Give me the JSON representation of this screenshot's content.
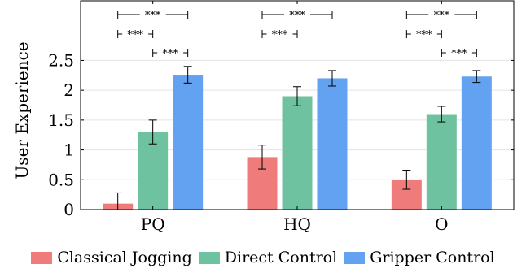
{
  "chart_data": {
    "type": "bar",
    "ylabel": "User Experience",
    "xlabel": "",
    "categories": [
      "PQ",
      "HQ",
      "O"
    ],
    "ylim": [
      0,
      3.5
    ],
    "yticks": [
      "0",
      "0.5",
      "1",
      "1.5",
      "2",
      "2.5"
    ],
    "ytick_values": [
      0,
      0.5,
      1,
      1.5,
      2,
      2.5
    ],
    "grid": true,
    "legend_position": "bottom",
    "series": [
      {
        "name": "Classical Jogging",
        "color": "#f07b7b",
        "values": [
          0.1,
          0.88,
          0.5
        ],
        "errors": [
          0.18,
          0.2,
          0.16
        ]
      },
      {
        "name": "Direct Control",
        "color": "#6fc2a0",
        "values": [
          1.3,
          1.9,
          1.6
        ],
        "errors": [
          0.2,
          0.16,
          0.13
        ]
      },
      {
        "name": "Gripper Control",
        "color": "#63a2f0",
        "values": [
          2.26,
          2.2,
          2.23
        ],
        "errors": [
          0.14,
          0.13,
          0.1
        ]
      }
    ],
    "significance": [
      {
        "category": "PQ",
        "from": 0,
        "to": 2,
        "label": "***"
      },
      {
        "category": "PQ",
        "from": 0,
        "to": 1,
        "label": "***"
      },
      {
        "category": "PQ",
        "from": 1,
        "to": 2,
        "label": "***"
      },
      {
        "category": "HQ",
        "from": 0,
        "to": 2,
        "label": "***"
      },
      {
        "category": "HQ",
        "from": 0,
        "to": 1,
        "label": "***"
      },
      {
        "category": "O",
        "from": 0,
        "to": 2,
        "label": "***"
      },
      {
        "category": "O",
        "from": 0,
        "to": 1,
        "label": "***"
      },
      {
        "category": "O",
        "from": 1,
        "to": 2,
        "label": "***"
      }
    ]
  }
}
